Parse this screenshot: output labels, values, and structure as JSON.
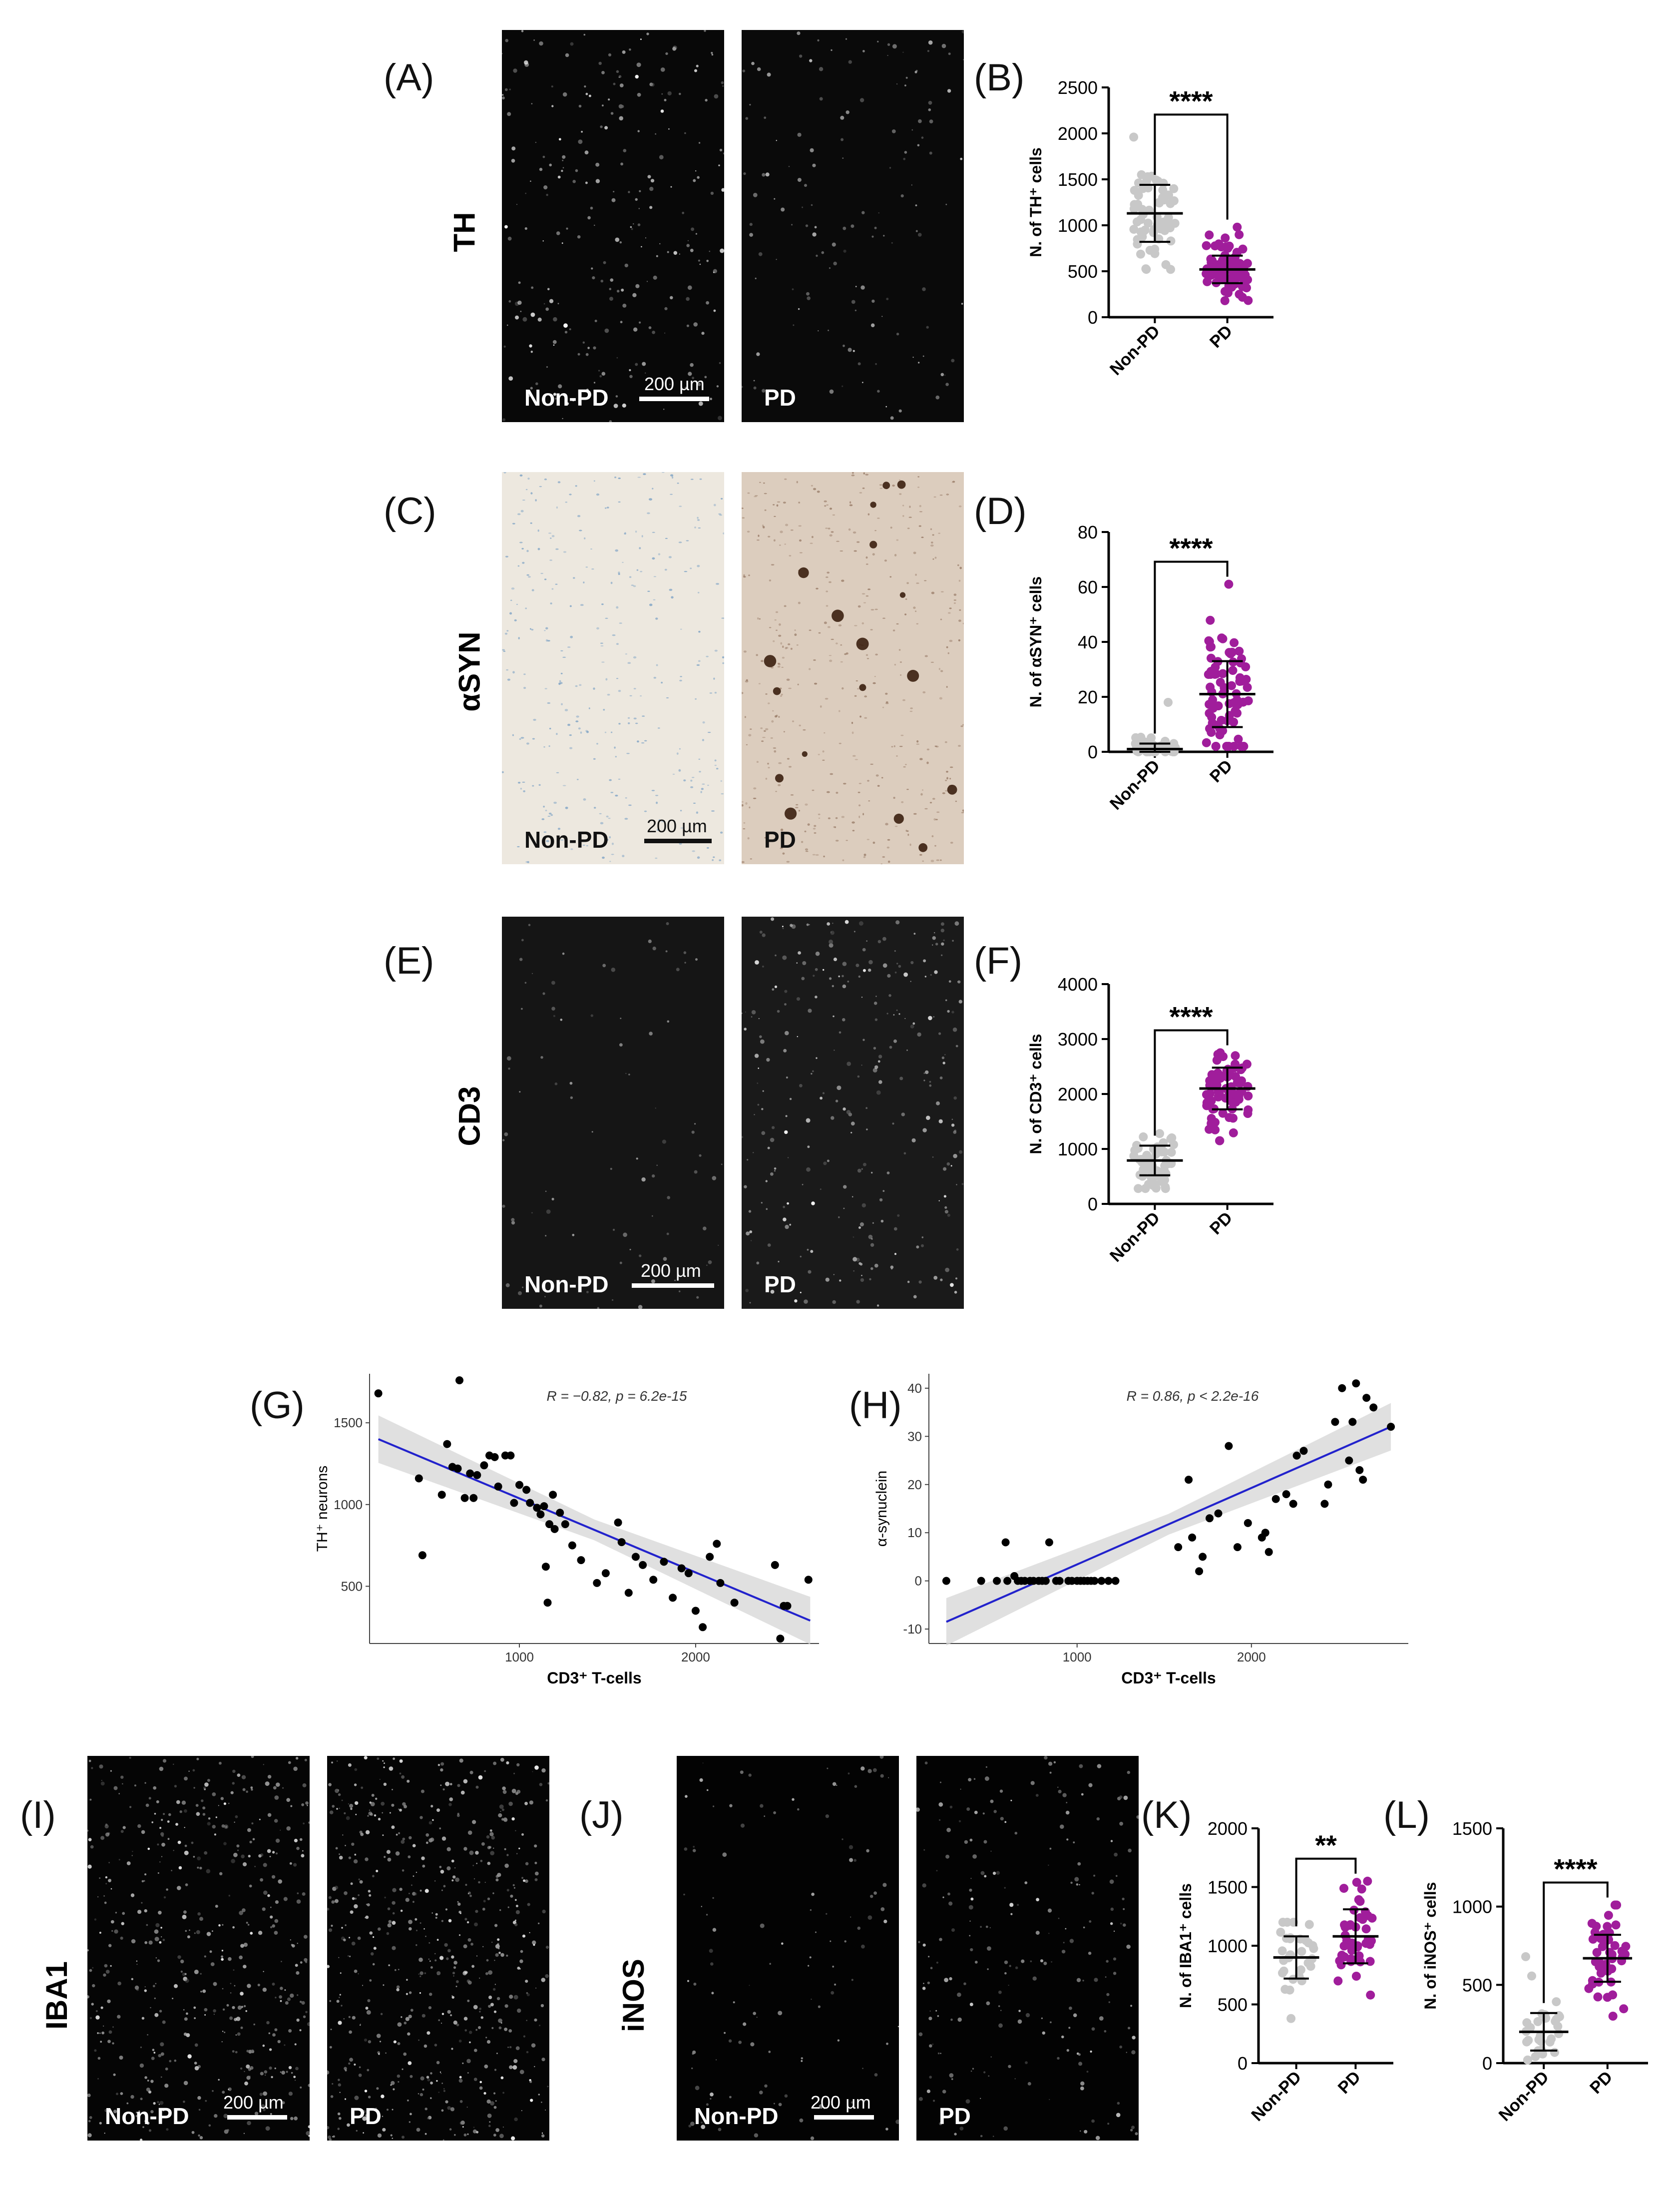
{
  "figure": {
    "row_labels": {
      "th": "TH",
      "asyn": "αSYN",
      "cd3": "CD3",
      "iba1": "IBA1",
      "inos": "iNOS"
    },
    "panel_letters": {
      "A": "(A)",
      "B": "(B)",
      "C": "(C)",
      "D": "(D)",
      "E": "(E)",
      "F": "(F)",
      "G": "(G)",
      "H": "(H)",
      "I": "(I)",
      "J": "(J)",
      "K": "(K)",
      "L": "(L)"
    },
    "micrographs": {
      "nonpd_label": "Non-PD",
      "pd_label": "PD",
      "scale_text": "200 µm"
    },
    "colors": {
      "nonpd": "#c8c8c8",
      "pd": "#a01d9b",
      "fit_line": "#2222cc",
      "ci_band": "#d6d6d6"
    }
  },
  "chart_data": [
    {
      "id": "B",
      "type": "scatter",
      "ylabel": "N. of TH⁺ cells",
      "ylim": [
        0,
        2500
      ],
      "yticks": [
        0,
        500,
        1000,
        1500,
        2000,
        2500
      ],
      "categories": [
        "Non-PD",
        "PD"
      ],
      "significance": "****",
      "series": [
        {
          "name": "Non-PD",
          "mean": 1130,
          "sd": 310,
          "n": 60,
          "min": 520,
          "max": 1960
        },
        {
          "name": "PD",
          "mean": 520,
          "sd": 150,
          "n": 80,
          "min": 180,
          "max": 980
        }
      ]
    },
    {
      "id": "D",
      "type": "scatter",
      "ylabel": "N. of αSYN⁺ cells",
      "ylim": [
        0,
        80
      ],
      "yticks": [
        0,
        20,
        40,
        60,
        80
      ],
      "categories": [
        "Non-PD",
        "PD"
      ],
      "significance": "****",
      "series": [
        {
          "name": "Non-PD",
          "mean": 1,
          "sd": 2,
          "n": 40,
          "min": 0,
          "max": 18
        },
        {
          "name": "PD",
          "mean": 21,
          "sd": 12,
          "n": 75,
          "min": 2,
          "max": 61
        }
      ]
    },
    {
      "id": "F",
      "type": "scatter",
      "ylabel": "N. of CD3⁺ cells",
      "ylim": [
        0,
        4000
      ],
      "yticks": [
        0,
        1000,
        2000,
        3000,
        4000
      ],
      "categories": [
        "Non-PD",
        "PD"
      ],
      "significance": "****",
      "series": [
        {
          "name": "Non-PD",
          "mean": 790,
          "sd": 270,
          "n": 60,
          "min": 280,
          "max": 1280
        },
        {
          "name": "PD",
          "mean": 2100,
          "sd": 380,
          "n": 75,
          "min": 1150,
          "max": 2750
        }
      ]
    },
    {
      "id": "G",
      "type": "scatter",
      "xlabel": "CD3⁺ T-cells",
      "ylabel": "TH⁺ neurons",
      "xlim": [
        150,
        2700
      ],
      "ylim": [
        150,
        1800
      ],
      "xticks": [
        1000,
        2000
      ],
      "yticks": [
        500,
        1000,
        1500
      ],
      "annotation": "R = −0.82, p = 6.2e-15",
      "fit": {
        "x": [
          200,
          2650
        ],
        "y": [
          1400,
          290
        ]
      },
      "points": [
        [
          200,
          1680
        ],
        [
          430,
          1160
        ],
        [
          450,
          690
        ],
        [
          560,
          1060
        ],
        [
          590,
          1370
        ],
        [
          620,
          1230
        ],
        [
          650,
          1220
        ],
        [
          660,
          1760
        ],
        [
          690,
          1040
        ],
        [
          720,
          1190
        ],
        [
          740,
          1040
        ],
        [
          760,
          1180
        ],
        [
          800,
          1240
        ],
        [
          830,
          1300
        ],
        [
          860,
          1290
        ],
        [
          880,
          1110
        ],
        [
          920,
          1300
        ],
        [
          950,
          1300
        ],
        [
          970,
          1010
        ],
        [
          1000,
          1120
        ],
        [
          1040,
          1090
        ],
        [
          1060,
          1010
        ],
        [
          1100,
          980
        ],
        [
          1120,
          940
        ],
        [
          1140,
          990
        ],
        [
          1150,
          620
        ],
        [
          1160,
          400
        ],
        [
          1170,
          880
        ],
        [
          1190,
          1060
        ],
        [
          1200,
          850
        ],
        [
          1230,
          950
        ],
        [
          1260,
          880
        ],
        [
          1300,
          750
        ],
        [
          1350,
          660
        ],
        [
          1440,
          520
        ],
        [
          1490,
          580
        ],
        [
          1560,
          890
        ],
        [
          1580,
          770
        ],
        [
          1620,
          460
        ],
        [
          1660,
          680
        ],
        [
          1700,
          630
        ],
        [
          1760,
          540
        ],
        [
          1820,
          650
        ],
        [
          1870,
          430
        ],
        [
          1920,
          610
        ],
        [
          1960,
          580
        ],
        [
          2000,
          350
        ],
        [
          2040,
          250
        ],
        [
          2080,
          680
        ],
        [
          2120,
          760
        ],
        [
          2140,
          520
        ],
        [
          2220,
          400
        ],
        [
          2450,
          630
        ],
        [
          2480,
          180
        ],
        [
          2500,
          380
        ],
        [
          2520,
          380
        ],
        [
          2640,
          540
        ]
      ]
    },
    {
      "id": "H",
      "type": "scatter",
      "xlabel": "CD3⁺ T-cells",
      "ylabel": "α-synuclein",
      "xlim": [
        150,
        2900
      ],
      "ylim": [
        -13,
        43
      ],
      "xticks": [
        1000,
        2000
      ],
      "yticks": [
        -10,
        0,
        10,
        20,
        30,
        40
      ],
      "annotation": "R = 0.86, p < 2.2e-16",
      "fit": {
        "x": [
          250,
          2800
        ],
        "y": [
          -8.5,
          32
        ]
      },
      "points": [
        [
          250,
          0
        ],
        [
          450,
          0
        ],
        [
          540,
          0
        ],
        [
          590,
          8
        ],
        [
          600,
          0
        ],
        [
          640,
          1
        ],
        [
          660,
          0
        ],
        [
          680,
          0
        ],
        [
          700,
          0
        ],
        [
          730,
          0
        ],
        [
          750,
          0
        ],
        [
          780,
          0
        ],
        [
          800,
          0
        ],
        [
          820,
          0
        ],
        [
          840,
          8
        ],
        [
          880,
          0
        ],
        [
          900,
          0
        ],
        [
          950,
          0
        ],
        [
          970,
          0
        ],
        [
          1000,
          0
        ],
        [
          1020,
          0
        ],
        [
          1040,
          0
        ],
        [
          1060,
          0
        ],
        [
          1080,
          0
        ],
        [
          1100,
          0
        ],
        [
          1140,
          0
        ],
        [
          1180,
          0
        ],
        [
          1220,
          0
        ],
        [
          1580,
          7
        ],
        [
          1640,
          21
        ],
        [
          1660,
          9
        ],
        [
          1700,
          2
        ],
        [
          1720,
          5
        ],
        [
          1760,
          13
        ],
        [
          1810,
          14
        ],
        [
          1870,
          28
        ],
        [
          1920,
          7
        ],
        [
          1980,
          12
        ],
        [
          2060,
          9
        ],
        [
          2080,
          10
        ],
        [
          2100,
          6
        ],
        [
          2140,
          17
        ],
        [
          2200,
          18
        ],
        [
          2240,
          16
        ],
        [
          2260,
          26
        ],
        [
          2300,
          27
        ],
        [
          2420,
          16
        ],
        [
          2440,
          20
        ],
        [
          2480,
          33
        ],
        [
          2520,
          40
        ],
        [
          2560,
          25
        ],
        [
          2580,
          33
        ],
        [
          2600,
          41
        ],
        [
          2620,
          23
        ],
        [
          2640,
          21
        ],
        [
          2660,
          38
        ],
        [
          2700,
          36
        ],
        [
          2800,
          32
        ]
      ]
    },
    {
      "id": "K",
      "type": "scatter",
      "ylabel": "N. of IBA1⁺ cells",
      "ylim": [
        0,
        2000
      ],
      "yticks": [
        0,
        500,
        1000,
        1500,
        2000
      ],
      "categories": [
        "Non-PD",
        "PD"
      ],
      "significance": "**",
      "series": [
        {
          "name": "Non-PD",
          "mean": 900,
          "sd": 180,
          "n": 30,
          "min": 380,
          "max": 1200
        },
        {
          "name": "PD",
          "mean": 1080,
          "sd": 230,
          "n": 45,
          "min": 580,
          "max": 1550
        }
      ]
    },
    {
      "id": "L",
      "type": "scatter",
      "ylabel": "N. of iNOS⁺ cells",
      "ylim": [
        0,
        1500
      ],
      "yticks": [
        0,
        500,
        1000,
        1500
      ],
      "categories": [
        "Non-PD",
        "PD"
      ],
      "significance": "****",
      "series": [
        {
          "name": "Non-PD",
          "mean": 200,
          "sd": 120,
          "n": 30,
          "min": 20,
          "max": 680
        },
        {
          "name": "PD",
          "mean": 670,
          "sd": 150,
          "n": 45,
          "min": 300,
          "max": 1010
        }
      ]
    }
  ]
}
